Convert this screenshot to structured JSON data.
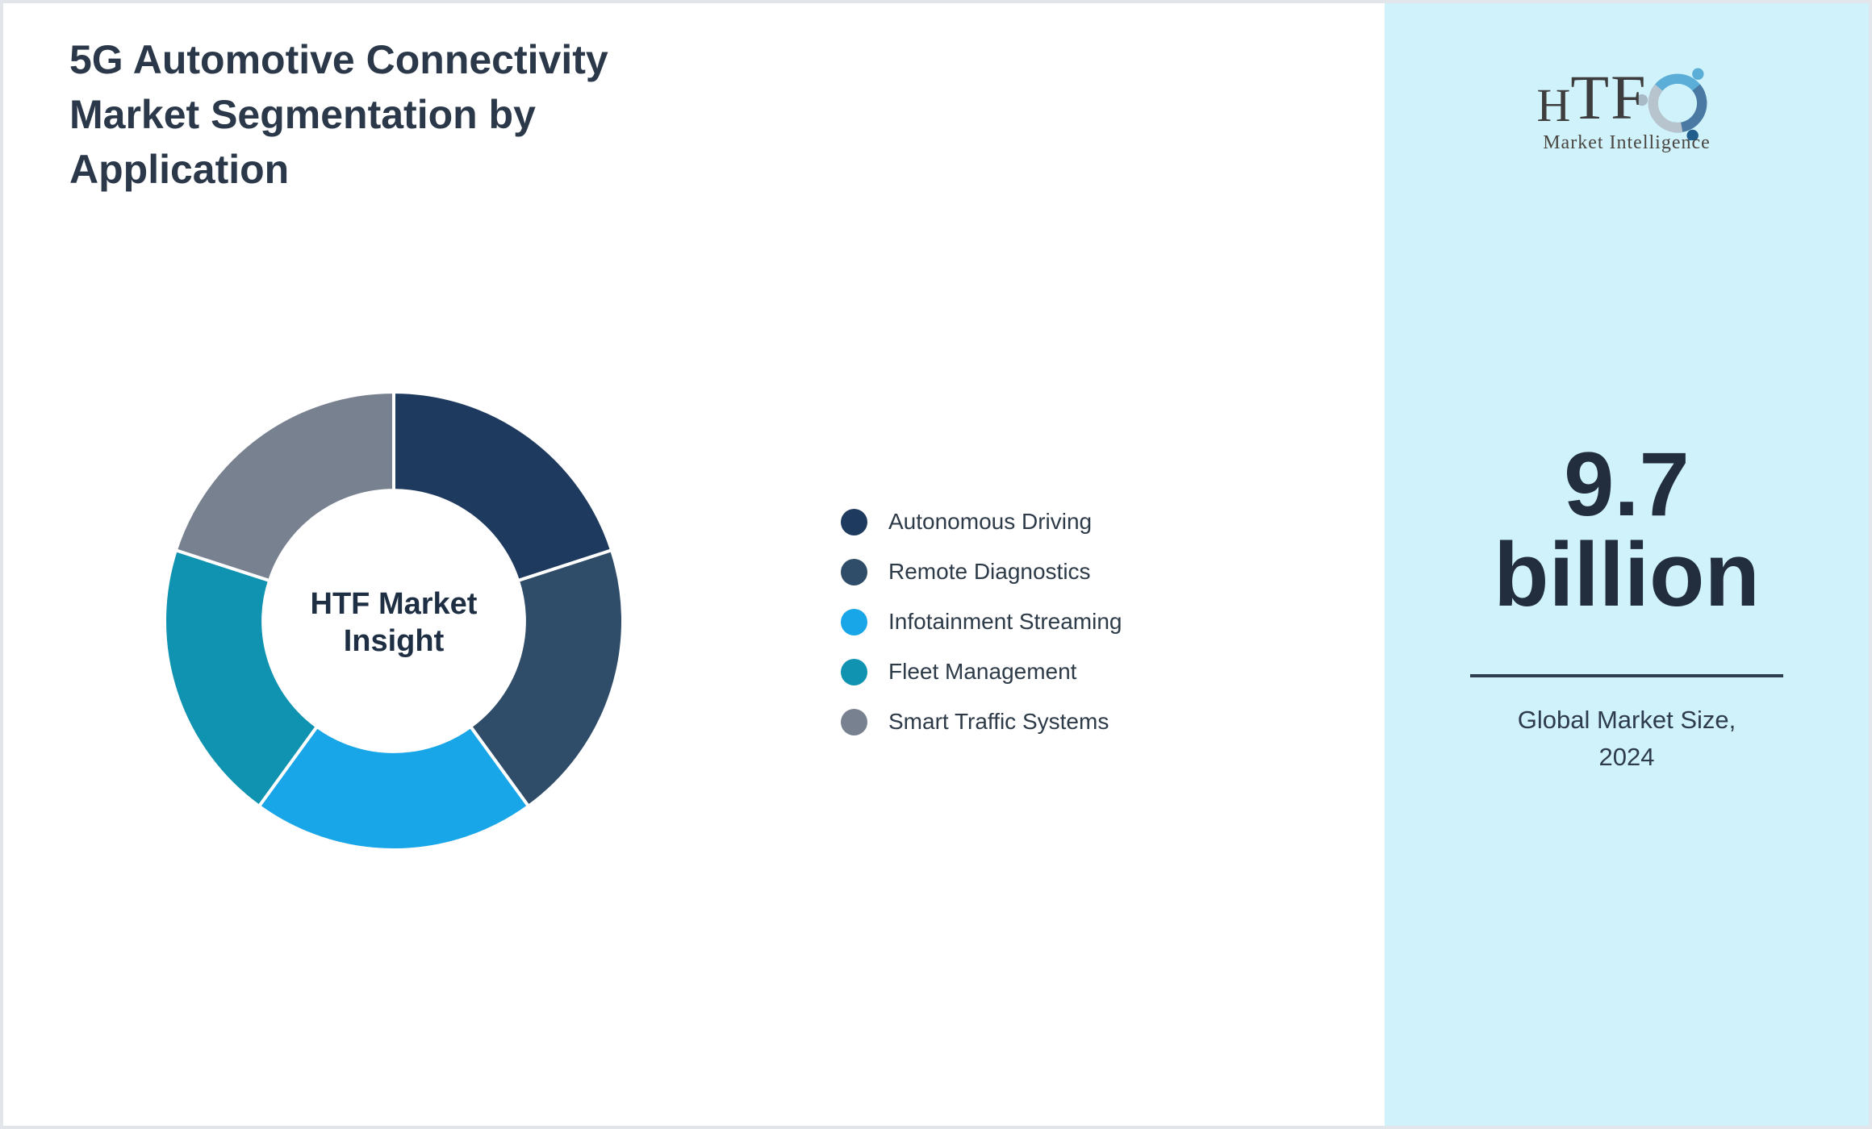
{
  "page": {
    "title_lines": [
      "5G Automotive Connectivity",
      "Market Segmentation by",
      "Application"
    ]
  },
  "chart_data": {
    "type": "pie",
    "subtype": "donut",
    "title": "5G Automotive Connectivity Market Segmentation by Application",
    "center_label_lines": [
      "HTF Market",
      "Insight"
    ],
    "donut_hole_ratio": 0.57,
    "start_angle": "top",
    "direction": "clockwise",
    "legend_position": "right-middle",
    "separator_color": "#ffffff",
    "segments": [
      {
        "label": "Autonomous Driving",
        "value": 20,
        "color": "#1e3a5f"
      },
      {
        "label": "Remote Diagnostics",
        "value": 20,
        "color": "#2f4c68"
      },
      {
        "label": "Infotainment Streaming",
        "value": 20,
        "color": "#18a6e8"
      },
      {
        "label": "Fleet Management",
        "value": 20,
        "color": "#0f93b0"
      },
      {
        "label": "Smart Traffic Systems",
        "value": 20,
        "color": "#78818f"
      }
    ],
    "note": "values are percent shares estimated from equal arc angles; no numeric labels shown in figure"
  },
  "sidebar": {
    "background_color": "#d0f3fb",
    "logo": {
      "brand_h": "H",
      "brand_tf": "TF",
      "tagline": "Market Intelligence",
      "icon": "three-swirling-figures"
    },
    "market_size": {
      "value": "9.7",
      "unit": "billion",
      "caption_lines": [
        "Global Market Size,",
        "2024"
      ]
    }
  }
}
